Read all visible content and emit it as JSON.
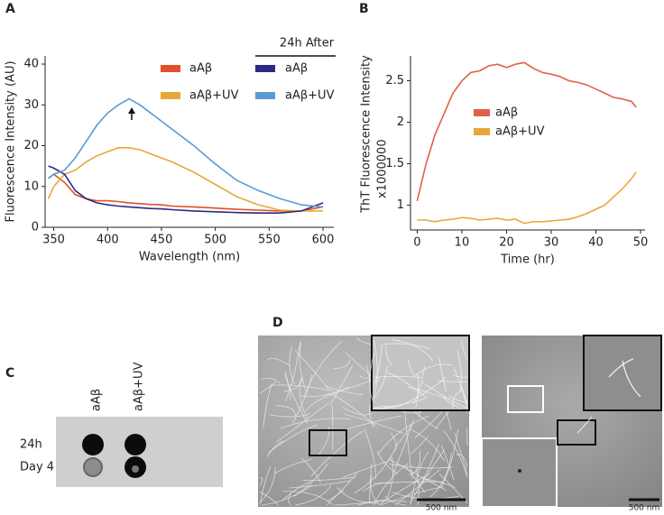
{
  "labels": [
    "A",
    "B",
    "C",
    "D"
  ],
  "chart_data": [
    {
      "type": "line",
      "x_label": "Wavelength (nm)",
      "y_label": "Fluorescence Intensity (AU)",
      "legend_title": "24h After",
      "x": [
        345,
        350,
        360,
        370,
        380,
        390,
        400,
        410,
        420,
        430,
        440,
        450,
        460,
        480,
        500,
        520,
        540,
        560,
        580,
        600
      ],
      "series": [
        {
          "name": "aAβ",
          "color": "#e0502a",
          "values": [
            12,
            13,
            11,
            8,
            7,
            6.5,
            6.5,
            6.3,
            6,
            5.8,
            5.6,
            5.5,
            5.2,
            5,
            4.7,
            4.4,
            4.2,
            4,
            4,
            5
          ]
        },
        {
          "name": "aAβ+UV",
          "color": "#e8a838",
          "values": [
            7,
            10,
            13,
            14,
            16,
            17.5,
            18.5,
            19.5,
            19.5,
            19,
            18,
            17,
            16,
            13.5,
            10.5,
            7.5,
            5.5,
            4.2,
            4,
            4
          ]
        },
        {
          "name": "aAβ",
          "color": "#2b2b86",
          "values": [
            15,
            14.5,
            13,
            9,
            7,
            6,
            5.5,
            5.2,
            5,
            4.8,
            4.6,
            4.5,
            4.3,
            4,
            3.8,
            3.6,
            3.5,
            3.5,
            4,
            6
          ]
        },
        {
          "name": "aAβ+UV",
          "color": "#5b9bd5",
          "values": [
            12,
            13,
            14,
            17,
            21,
            25,
            28,
            30,
            31.5,
            30,
            28,
            26,
            24,
            20,
            15.5,
            11.5,
            9,
            7,
            5.5,
            5
          ]
        }
      ],
      "xlim": [
        342,
        610
      ],
      "xticks": [
        350,
        400,
        450,
        500,
        550,
        600
      ],
      "ylim": [
        0,
        42
      ],
      "yticks": [
        0,
        10,
        20,
        30,
        40
      ]
    },
    {
      "type": "line",
      "x_label": "Time (hr)",
      "y_label": "ThT Fluorescence Intensity",
      "y_label_unit": "x1000000",
      "x": [
        0,
        2,
        4,
        6,
        8,
        10,
        12,
        14,
        16,
        18,
        20,
        22,
        24,
        26,
        28,
        30,
        32,
        34,
        36,
        38,
        40,
        42,
        44,
        46,
        48,
        49
      ],
      "series": [
        {
          "name": "aAβ",
          "color": "#e0604a",
          "values": [
            1.05,
            1.5,
            1.85,
            2.1,
            2.35,
            2.5,
            2.6,
            2.62,
            2.68,
            2.7,
            2.66,
            2.7,
            2.72,
            2.65,
            2.6,
            2.58,
            2.55,
            2.5,
            2.48,
            2.45,
            2.4,
            2.35,
            2.3,
            2.28,
            2.25,
            2.18
          ]
        },
        {
          "name": "aAβ+UV",
          "color": "#e8a838",
          "values": [
            0.82,
            0.82,
            0.8,
            0.82,
            0.83,
            0.85,
            0.84,
            0.82,
            0.83,
            0.84,
            0.82,
            0.83,
            0.78,
            0.8,
            0.8,
            0.81,
            0.82,
            0.83,
            0.86,
            0.9,
            0.95,
            1.0,
            1.1,
            1.2,
            1.32,
            1.4
          ]
        }
      ],
      "xlim": [
        -1.5,
        51
      ],
      "xticks": [
        0,
        10,
        20,
        30,
        40,
        50
      ],
      "ylim": [
        0.7,
        2.8
      ],
      "yticks": [
        1,
        1.5,
        2,
        2.5
      ]
    }
  ],
  "dot_blot": {
    "columns": [
      "aAβ",
      "aAβ+UV"
    ],
    "rows": [
      "24h",
      "Day 4"
    ]
  },
  "micrographs": {
    "scale_bars": [
      "500 nm",
      "500 nm"
    ]
  }
}
